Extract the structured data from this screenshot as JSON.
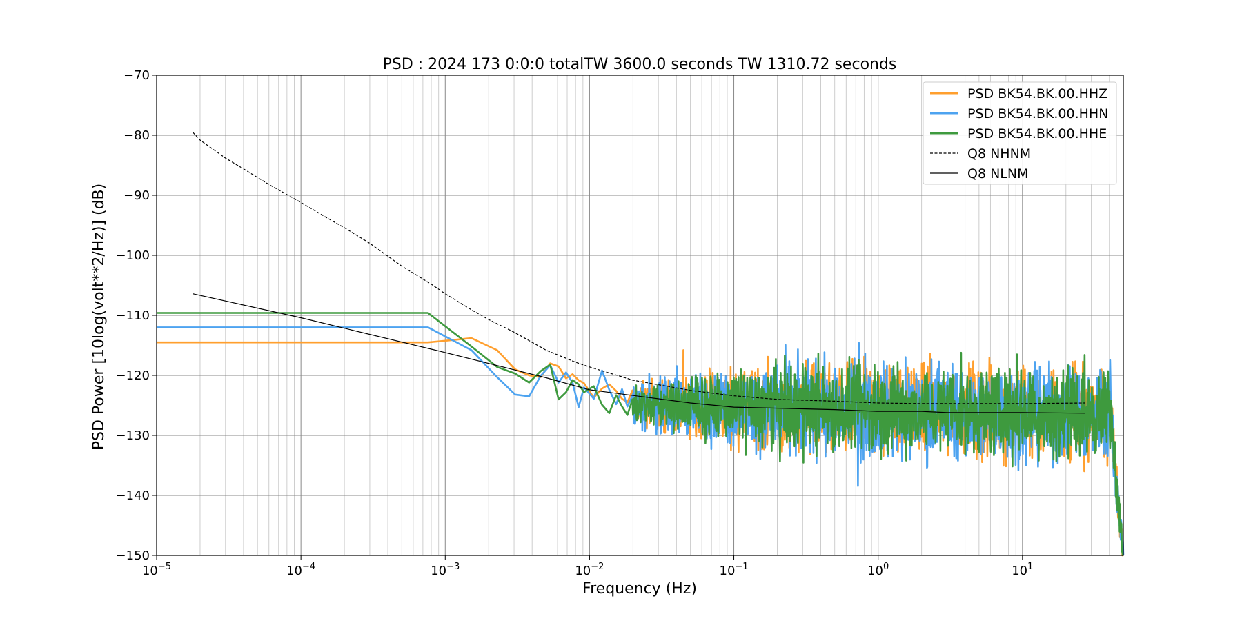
{
  "chart_data": {
    "type": "line",
    "title": "PSD : 2024 173 0:0:0 totalTW 3600.0 seconds TW 1310.72 seconds",
    "xlabel": "Frequency (Hz)",
    "ylabel": "PSD Power [10log(volt**2/Hz)] (dB)",
    "xscale": "log",
    "xlim": [
      1e-05,
      50
    ],
    "ylim": [
      -150,
      -70
    ],
    "grid": true,
    "legend_position": "top-right",
    "x_tick_labels": [
      {
        "base": "10",
        "exp": "−5"
      },
      {
        "base": "10",
        "exp": "−4"
      },
      {
        "base": "10",
        "exp": "−3"
      },
      {
        "base": "10",
        "exp": "−2"
      },
      {
        "base": "10",
        "exp": "−1"
      },
      {
        "base": "10",
        "exp": "0"
      },
      {
        "base": "10",
        "exp": "1"
      }
    ],
    "y_ticks": [
      -70,
      -80,
      -90,
      -100,
      -110,
      -120,
      -130,
      -140,
      -150
    ],
    "y_tick_labels": [
      "−70",
      "−80",
      "−90",
      "−100",
      "−110",
      "−120",
      "−130",
      "−140",
      "−150"
    ],
    "series": [
      {
        "name": "PSD BK54.BK.00.HHZ",
        "color": "#ff9f2e",
        "style": "solid",
        "points": [
          [
            1e-05,
            -114.5
          ],
          [
            0.00076,
            -114.5
          ],
          [
            0.00152,
            -113.8
          ],
          [
            0.00229,
            -115.8
          ],
          [
            0.00305,
            -119
          ],
          [
            0.00381,
            -120
          ],
          [
            0.00458,
            -120.3
          ],
          [
            0.00534,
            -118
          ],
          [
            0.0061,
            -118.5
          ],
          [
            0.00687,
            -120.5
          ],
          [
            0.00763,
            -119.8
          ],
          [
            0.0084,
            -120.8
          ],
          [
            0.00916,
            -121.3
          ],
          [
            0.0107,
            -123.7
          ],
          [
            0.0122,
            -122.2
          ],
          [
            0.0137,
            -121.5
          ],
          [
            0.0153,
            -122.6
          ],
          [
            0.0168,
            -123.9
          ],
          [
            0.0183,
            -124.5
          ],
          [
            0.0198,
            -122.5
          ]
        ],
        "noise": {
          "x_range": [
            0.02,
            41
          ],
          "center_start": -124.8,
          "center_end": -126.4,
          "amplitude": 8
        }
      },
      {
        "name": "PSD BK54.BK.00.HHN",
        "color": "#4da3f0",
        "style": "solid",
        "points": [
          [
            1e-05,
            -112
          ],
          [
            0.00076,
            -112
          ],
          [
            0.00152,
            -115.8
          ],
          [
            0.00229,
            -120.3
          ],
          [
            0.00305,
            -123.2
          ],
          [
            0.00381,
            -123.5
          ],
          [
            0.00458,
            -120.1
          ],
          [
            0.00534,
            -118.3
          ],
          [
            0.0061,
            -121.2
          ],
          [
            0.00687,
            -119.5
          ],
          [
            0.00763,
            -121.2
          ],
          [
            0.0084,
            -125.3
          ],
          [
            0.00916,
            -122
          ],
          [
            0.0107,
            -123.9
          ],
          [
            0.0122,
            -119.2
          ],
          [
            0.0137,
            -122.4
          ],
          [
            0.0153,
            -124.8
          ],
          [
            0.0168,
            -122.3
          ],
          [
            0.0183,
            -125.2
          ],
          [
            0.0198,
            -123.4
          ]
        ],
        "noise": {
          "x_range": [
            0.02,
            41
          ],
          "center_start": -125,
          "center_end": -126.6,
          "amplitude": 8.5
        }
      },
      {
        "name": "PSD BK54.BK.00.HHE",
        "color": "#3e9a3e",
        "style": "solid",
        "points": [
          [
            1e-05,
            -109.6
          ],
          [
            0.00076,
            -109.6
          ],
          [
            0.00152,
            -115.2
          ],
          [
            0.00229,
            -118.6
          ],
          [
            0.00305,
            -119.7
          ],
          [
            0.00381,
            -121.2
          ],
          [
            0.00458,
            -119.3
          ],
          [
            0.00534,
            -118.2
          ],
          [
            0.0061,
            -124
          ],
          [
            0.00687,
            -122.8
          ],
          [
            0.00763,
            -120.8
          ],
          [
            0.0084,
            -121.5
          ],
          [
            0.00916,
            -122.8
          ],
          [
            0.0107,
            -121.8
          ],
          [
            0.0122,
            -124.9
          ],
          [
            0.0137,
            -126.3
          ],
          [
            0.0153,
            -123.3
          ],
          [
            0.0168,
            -125.2
          ],
          [
            0.0183,
            -126.6
          ],
          [
            0.0198,
            -124
          ]
        ],
        "noise": {
          "x_range": [
            0.02,
            41
          ],
          "center_start": -124.9,
          "center_end": -126.5,
          "amplitude": 7.5
        }
      },
      {
        "name": "Q8 NHNM",
        "color": "#000000",
        "style": "dashed",
        "points": [
          [
            1.78e-05,
            -79.5
          ],
          [
            2e-05,
            -80.8
          ],
          [
            3e-05,
            -83.8
          ],
          [
            4e-05,
            -85.6
          ],
          [
            6e-05,
            -88.2
          ],
          [
            0.0001,
            -91.2
          ],
          [
            0.00015,
            -93.7
          ],
          [
            0.0002,
            -95.4
          ],
          [
            0.0003,
            -98
          ],
          [
            0.0005,
            -101.8
          ],
          [
            0.0008,
            -104.8
          ],
          [
            0.001,
            -106.4
          ],
          [
            0.0015,
            -109
          ],
          [
            0.002,
            -110.7
          ],
          [
            0.003,
            -112.8
          ],
          [
            0.005,
            -115.8
          ],
          [
            0.008,
            -117.8
          ],
          [
            0.01,
            -118.6
          ],
          [
            0.02,
            -120.8
          ],
          [
            0.05,
            -122.5
          ],
          [
            0.1,
            -123.4
          ],
          [
            0.2,
            -124
          ],
          [
            0.5,
            -124.3
          ],
          [
            1,
            -124.6
          ],
          [
            2,
            -124.7
          ],
          [
            5,
            -124.7
          ],
          [
            10,
            -124.7
          ],
          [
            27,
            -124.6
          ]
        ]
      },
      {
        "name": "Q8 NLNM",
        "color": "#000000",
        "style": "solid",
        "points": [
          [
            1.78e-05,
            -106.4
          ],
          [
            0.0001,
            -110.4
          ],
          [
            0.001,
            -116.2
          ],
          [
            0.005,
            -120.4
          ],
          [
            0.01,
            -122.4
          ],
          [
            0.05,
            -124.6
          ],
          [
            0.1,
            -125.3
          ],
          [
            0.5,
            -125.7
          ],
          [
            1,
            -126
          ],
          [
            2,
            -126
          ],
          [
            3,
            -126.2
          ],
          [
            10,
            -126.2
          ],
          [
            27,
            -126.3
          ]
        ]
      }
    ],
    "rolloff": {
      "x_range": [
        41,
        50
      ],
      "y_end": -150
    }
  }
}
